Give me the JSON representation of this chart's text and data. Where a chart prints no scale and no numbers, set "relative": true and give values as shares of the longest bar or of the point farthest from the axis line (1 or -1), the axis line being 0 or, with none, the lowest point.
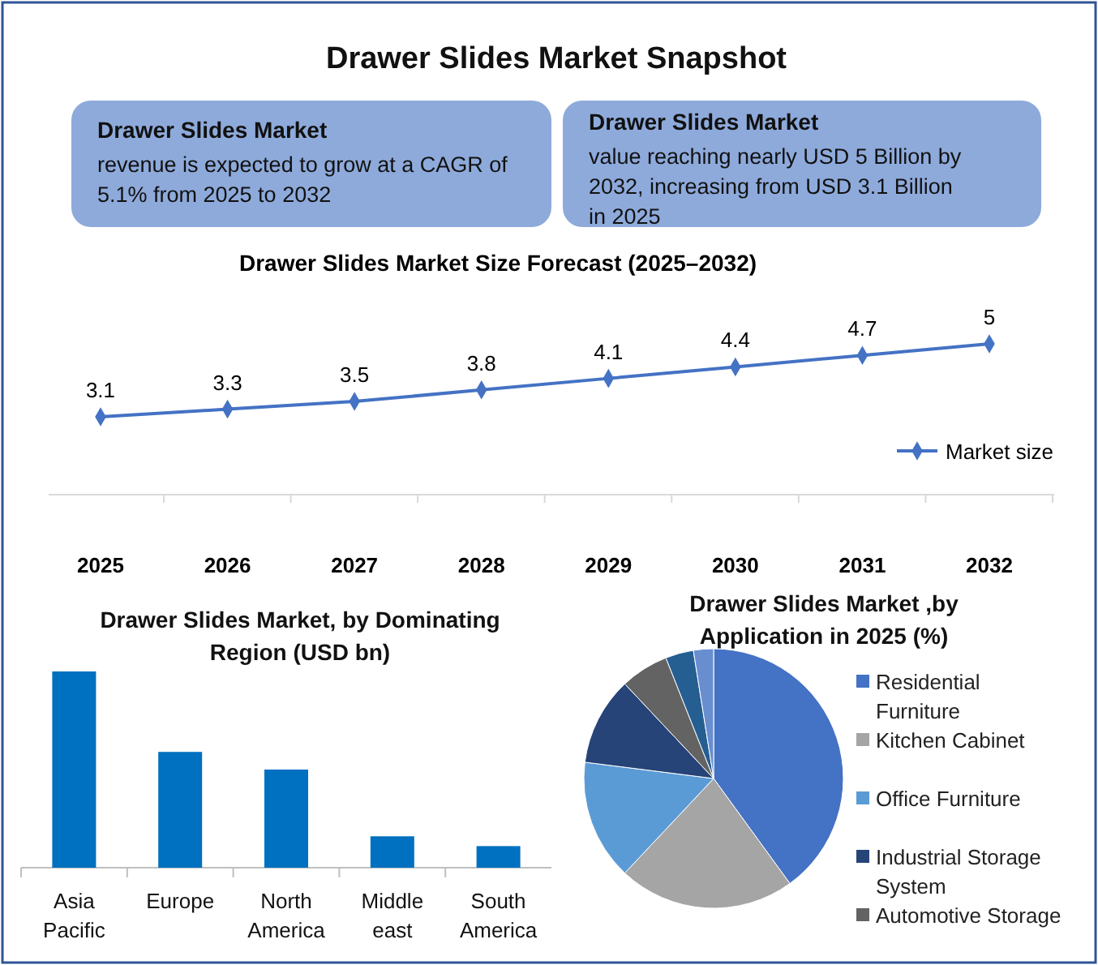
{
  "chart_data": [
    {
      "type": "other",
      "title": "Drawer Slides Market Snapshot",
      "annotations": [
        "Drawer Slides Market",
        "revenue is expected to grow at a CAGR of 5.1% from 2025 to 2032",
        "Drawer Slides Market",
        "value reaching nearly USD 5 Billion by 2032, increasing from USD 3.1 Billion in 2025"
      ]
    },
    {
      "type": "line",
      "title": "Drawer Slides Market Size Forecast (2025–2032)",
      "categories": [
        "2025",
        "2026",
        "2027",
        "2028",
        "2029",
        "2030",
        "2031",
        "2032"
      ],
      "series": [
        {
          "name": "Market size",
          "color": "#4472c4",
          "values": [
            3.1,
            3.3,
            3.5,
            3.8,
            4.1,
            4.4,
            4.7,
            5
          ]
        }
      ],
      "data_labels": true,
      "marker": "diamond",
      "legend": "right"
    },
    {
      "type": "bar",
      "title": "Drawer Slides Market, by  Dominating Region (USD bn)",
      "categories": [
        "Asia Pacific",
        "Europe",
        "North America",
        "Middle east",
        "South America"
      ],
      "values": [
        1,
        0.59,
        0.5,
        0.16,
        0.11
      ],
      "color": "#0070c0",
      "relative": true
    },
    {
      "type": "pie",
      "title": "Drawer Slides Market ,by Application in 2025 (%)",
      "categories": [
        "Residential Furniture",
        "Kitchen Cabinet",
        "Office Furniture",
        "Industrial Storage System",
        "Automotive Storage",
        null,
        null
      ],
      "values": [
        40,
        22,
        15,
        11,
        6,
        3.5,
        2.5
      ],
      "colors": [
        "#4472c4",
        "#a5a5a5",
        "#5b9bd5",
        "#264478",
        "#636363",
        "#255e91",
        "#698ed0"
      ],
      "legend": "right"
    }
  ]
}
